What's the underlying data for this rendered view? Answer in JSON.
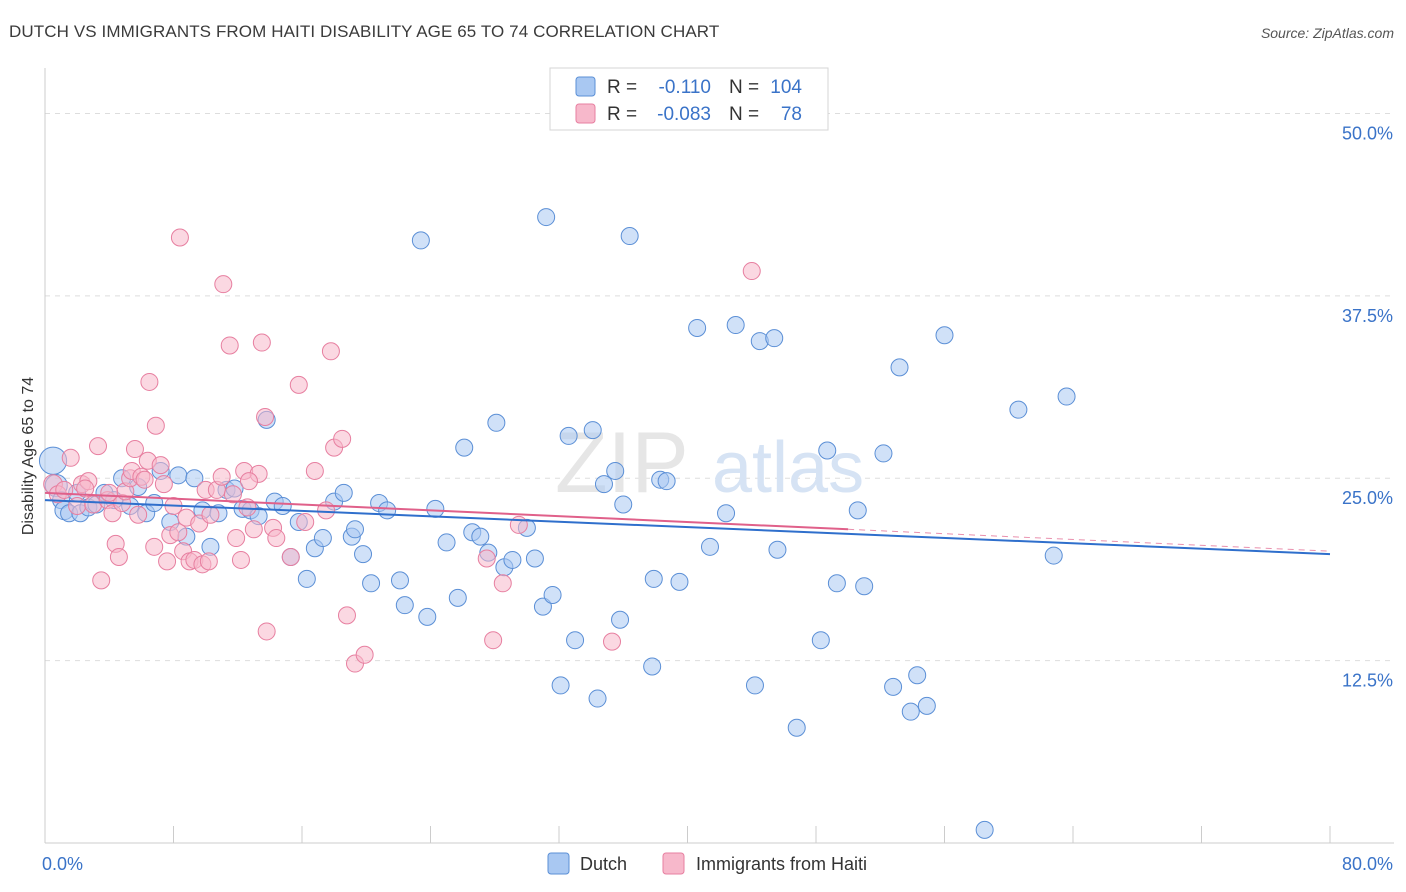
{
  "header": {
    "title": "DUTCH VS IMMIGRANTS FROM HAITI DISABILITY AGE 65 TO 74 CORRELATION CHART",
    "source": "Source: ZipAtlas.com"
  },
  "colors": {
    "dutch_fill": "#a9c8f2",
    "dutch_stroke": "#5b8fd6",
    "dutch_line": "#2f6fcc",
    "haiti_fill": "#f7b8cb",
    "haiti_stroke": "#e77fa0",
    "haiti_line": "#e0608a",
    "tick_label": "#3a73c8",
    "grid": "#dddddd"
  },
  "legend": {
    "rows": [
      {
        "r_label": "R =",
        "r_value": "-0.110",
        "n_label": "N =",
        "n_value": "104"
      },
      {
        "r_label": "R =",
        "r_value": "-0.083",
        "n_label": "N =",
        "n_value": "78"
      }
    ]
  },
  "chart_data": {
    "type": "scatter",
    "title": "DUTCH VS IMMIGRANTS FROM HAITI DISABILITY AGE 65 TO 74 CORRELATION CHART",
    "xlabel": "",
    "ylabel": "Disability Age 65 to 74",
    "xlim": [
      0,
      80
    ],
    "ylim": [
      0,
      52.5
    ],
    "x_tick_labels": [
      {
        "value": 0,
        "label": "0.0%"
      },
      {
        "value": 80,
        "label": "80.0%"
      }
    ],
    "y_tick_labels": [
      {
        "value": 12.5,
        "label": "12.5%"
      },
      {
        "value": 25,
        "label": "25.0%"
      },
      {
        "value": 37.5,
        "label": "37.5%"
      },
      {
        "value": 50,
        "label": "50.0%"
      }
    ],
    "grid": true,
    "legend_position": "top-center",
    "watermark": "ZIPatlas",
    "series": [
      {
        "name": "Dutch",
        "r": -0.11,
        "n": 104,
        "trend": {
          "x0": 0,
          "y0": 23.5,
          "x1": 80,
          "y1": 19.8
        },
        "points": [
          [
            0.5,
            26.2,
            1.6
          ],
          [
            0.7,
            24.5,
            1.3
          ],
          [
            1.0,
            23.5,
            1.0
          ],
          [
            1.2,
            22.8,
            1.1
          ],
          [
            1.5,
            22.6,
            1.0
          ],
          [
            2.2,
            22.6,
            1.0
          ],
          [
            2.7,
            23.0,
            1.0
          ],
          [
            3.2,
            23.2,
            1.0
          ],
          [
            3.7,
            24.0,
            1.0
          ],
          [
            4.3,
            23.5,
            1.0
          ],
          [
            4.8,
            25.0,
            1.0
          ],
          [
            5.3,
            23.1,
            1.0
          ],
          [
            5.8,
            24.4,
            1.0
          ],
          [
            6.3,
            22.6,
            1.0
          ],
          [
            6.8,
            23.3,
            1.0
          ],
          [
            7.2,
            25.5,
            1.0
          ],
          [
            7.8,
            22.0,
            1.0
          ],
          [
            8.3,
            25.2,
            1.0
          ],
          [
            8.8,
            21.0,
            1.0
          ],
          [
            9.3,
            25.0,
            1.0
          ],
          [
            9.8,
            22.8,
            1.0
          ],
          [
            10.3,
            20.3,
            1.0
          ],
          [
            10.8,
            22.6,
            1.0
          ],
          [
            11.3,
            24.2,
            1.0
          ],
          [
            11.8,
            24.3,
            1.0
          ],
          [
            12.3,
            22.9,
            1.0
          ],
          [
            12.8,
            22.8,
            1.0
          ],
          [
            13.3,
            22.4,
            1.0
          ],
          [
            13.8,
            29.0,
            1.0
          ],
          [
            14.3,
            23.4,
            1.0
          ],
          [
            14.8,
            23.1,
            1.0
          ],
          [
            15.3,
            19.6,
            1.0
          ],
          [
            15.8,
            22.0,
            1.0
          ],
          [
            16.3,
            18.1,
            1.0
          ],
          [
            16.8,
            20.2,
            1.0
          ],
          [
            17.3,
            20.9,
            1.0
          ],
          [
            18.0,
            23.4,
            1.0
          ],
          [
            18.6,
            24.0,
            1.0
          ],
          [
            19.1,
            21.0,
            1.0
          ],
          [
            19.3,
            21.5,
            1.0
          ],
          [
            19.8,
            19.8,
            1.0
          ],
          [
            20.3,
            17.8,
            1.0
          ],
          [
            20.8,
            23.3,
            1.0
          ],
          [
            21.3,
            22.8,
            1.0
          ],
          [
            22.1,
            18.0,
            1.0
          ],
          [
            22.4,
            16.3,
            1.0
          ],
          [
            23.4,
            41.3,
            1.0
          ],
          [
            23.8,
            15.5,
            1.0
          ],
          [
            24.3,
            22.9,
            1.0
          ],
          [
            25.0,
            20.6,
            1.0
          ],
          [
            25.7,
            16.8,
            1.0
          ],
          [
            26.1,
            27.1,
            1.0
          ],
          [
            26.6,
            21.3,
            1.0
          ],
          [
            27.1,
            21.0,
            1.0
          ],
          [
            27.6,
            19.9,
            1.0
          ],
          [
            28.1,
            28.8,
            1.0
          ],
          [
            28.6,
            18.9,
            1.0
          ],
          [
            29.1,
            19.4,
            1.0
          ],
          [
            30.0,
            21.6,
            1.0
          ],
          [
            30.5,
            19.5,
            1.0
          ],
          [
            31.0,
            16.2,
            1.0
          ],
          [
            31.2,
            42.9,
            1.0
          ],
          [
            31.6,
            17.0,
            1.0
          ],
          [
            32.1,
            10.8,
            1.0
          ],
          [
            32.6,
            27.9,
            1.0
          ],
          [
            33.0,
            13.9,
            1.0
          ],
          [
            34.1,
            28.3,
            1.0
          ],
          [
            34.8,
            24.6,
            1.0
          ],
          [
            35.5,
            25.5,
            1.0
          ],
          [
            35.8,
            15.3,
            1.0
          ],
          [
            36.0,
            23.2,
            1.0
          ],
          [
            36.4,
            41.6,
            1.0
          ],
          [
            34.4,
            9.9,
            1.0
          ],
          [
            37.8,
            12.1,
            1.0
          ],
          [
            37.9,
            18.1,
            1.0
          ],
          [
            38.3,
            24.9,
            1.0
          ],
          [
            38.7,
            24.8,
            1.0
          ],
          [
            39.5,
            17.9,
            1.0
          ],
          [
            40.6,
            35.3,
            1.0
          ],
          [
            41.4,
            20.3,
            1.0
          ],
          [
            42.4,
            22.6,
            1.0
          ],
          [
            43.0,
            35.5,
            1.0
          ],
          [
            44.2,
            10.8,
            1.0
          ],
          [
            44.5,
            34.4,
            1.0
          ],
          [
            45.4,
            34.6,
            1.0
          ],
          [
            45.6,
            20.1,
            1.0
          ],
          [
            46.8,
            7.9,
            1.0
          ],
          [
            48.3,
            13.9,
            1.0
          ],
          [
            48.7,
            26.9,
            1.0
          ],
          [
            49.3,
            17.8,
            1.0
          ],
          [
            50.6,
            22.8,
            1.0
          ],
          [
            51.0,
            17.6,
            1.0
          ],
          [
            52.2,
            26.7,
            1.0
          ],
          [
            52.8,
            10.7,
            1.0
          ],
          [
            53.2,
            32.6,
            1.0
          ],
          [
            53.9,
            9.0,
            1.0
          ],
          [
            54.3,
            11.5,
            1.0
          ],
          [
            54.9,
            9.4,
            1.0
          ],
          [
            56.0,
            34.8,
            1.0
          ],
          [
            58.5,
            0.9,
            1.0
          ],
          [
            60.6,
            29.7,
            1.0
          ],
          [
            62.8,
            19.7,
            1.0
          ],
          [
            63.6,
            30.6,
            1.0
          ],
          [
            2.0,
            24.0,
            1.0
          ]
        ]
      },
      {
        "name": "Immigrants from Haiti",
        "r": -0.083,
        "n": 78,
        "trend": {
          "x0": 0,
          "y0": 24.0,
          "x1": 50,
          "y1": 21.5,
          "dash_to_x": 80,
          "dash_to_y": 20.0
        },
        "points": [
          [
            0.5,
            24.6,
            1.1
          ],
          [
            0.8,
            23.9,
            1.0
          ],
          [
            1.2,
            24.2,
            1.0
          ],
          [
            1.6,
            26.4,
            1.0
          ],
          [
            2.0,
            23.1,
            1.0
          ],
          [
            2.3,
            24.6,
            1.0
          ],
          [
            2.7,
            24.8,
            1.0
          ],
          [
            3.0,
            23.2,
            1.0
          ],
          [
            3.3,
            27.2,
            1.0
          ],
          [
            3.5,
            18.0,
            1.0
          ],
          [
            3.9,
            23.5,
            1.0
          ],
          [
            4.2,
            22.6,
            1.0
          ],
          [
            4.4,
            20.5,
            1.0
          ],
          [
            4.6,
            19.6,
            1.0
          ],
          [
            4.8,
            23.3,
            1.0
          ],
          [
            5.0,
            24.1,
            1.0
          ],
          [
            5.3,
            25.0,
            1.0
          ],
          [
            5.4,
            25.5,
            1.0
          ],
          [
            5.6,
            27.0,
            1.0
          ],
          [
            5.8,
            22.5,
            1.0
          ],
          [
            6.0,
            25.1,
            1.0
          ],
          [
            6.2,
            24.9,
            1.0
          ],
          [
            6.4,
            26.2,
            1.0
          ],
          [
            6.5,
            31.6,
            1.0
          ],
          [
            6.8,
            20.3,
            1.0
          ],
          [
            6.9,
            28.6,
            1.0
          ],
          [
            7.2,
            25.9,
            1.0
          ],
          [
            7.4,
            24.6,
            1.0
          ],
          [
            7.6,
            19.3,
            1.0
          ],
          [
            7.8,
            21.1,
            1.0
          ],
          [
            8.0,
            23.1,
            1.0
          ],
          [
            8.3,
            21.3,
            1.0
          ],
          [
            8.4,
            41.5,
            1.0
          ],
          [
            8.6,
            20.0,
            1.0
          ],
          [
            8.8,
            22.3,
            1.0
          ],
          [
            9.0,
            19.3,
            1.0
          ],
          [
            9.3,
            19.4,
            1.0
          ],
          [
            9.6,
            21.9,
            1.0
          ],
          [
            9.8,
            19.1,
            1.0
          ],
          [
            10.0,
            24.2,
            1.0
          ],
          [
            10.3,
            22.5,
            1.0
          ],
          [
            10.7,
            24.2,
            1.0
          ],
          [
            11.0,
            25.1,
            1.0
          ],
          [
            11.1,
            38.3,
            1.0
          ],
          [
            11.5,
            34.1,
            1.0
          ],
          [
            11.7,
            23.9,
            1.0
          ],
          [
            11.9,
            20.9,
            1.0
          ],
          [
            12.2,
            19.4,
            1.0
          ],
          [
            12.4,
            25.5,
            1.0
          ],
          [
            12.6,
            23.0,
            1.0
          ],
          [
            13.0,
            21.5,
            1.0
          ],
          [
            13.3,
            25.3,
            1.0
          ],
          [
            13.5,
            34.3,
            1.0
          ],
          [
            13.7,
            29.2,
            1.0
          ],
          [
            13.8,
            14.5,
            1.0
          ],
          [
            14.2,
            21.6,
            1.0
          ],
          [
            14.4,
            20.9,
            1.0
          ],
          [
            15.3,
            19.6,
            1.0
          ],
          [
            15.8,
            31.4,
            1.0
          ],
          [
            16.2,
            22.0,
            1.0
          ],
          [
            16.8,
            25.5,
            1.0
          ],
          [
            17.5,
            22.8,
            1.0
          ],
          [
            17.8,
            33.7,
            1.0
          ],
          [
            18.0,
            27.1,
            1.0
          ],
          [
            18.5,
            27.7,
            1.0
          ],
          [
            18.8,
            15.6,
            1.0
          ],
          [
            19.3,
            12.3,
            1.0
          ],
          [
            19.9,
            12.9,
            1.0
          ],
          [
            27.5,
            19.5,
            1.0
          ],
          [
            27.9,
            13.9,
            1.0
          ],
          [
            28.5,
            17.8,
            1.0
          ],
          [
            29.5,
            21.8,
            1.0
          ],
          [
            35.3,
            13.8,
            1.0
          ],
          [
            44.0,
            39.2,
            1.0
          ],
          [
            2.5,
            24.3,
            1.0
          ],
          [
            4.0,
            24.0,
            1.0
          ],
          [
            10.2,
            19.3,
            1.0
          ],
          [
            12.7,
            24.8,
            1.0
          ]
        ]
      }
    ]
  }
}
